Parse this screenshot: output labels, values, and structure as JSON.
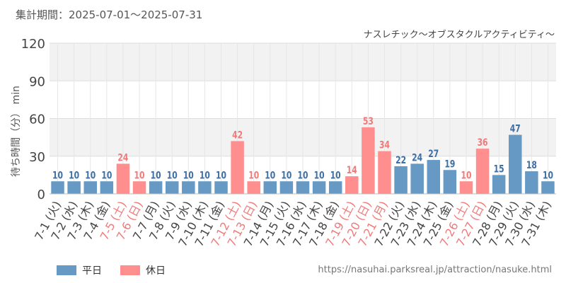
{
  "header": {
    "period": "集計期間：2025-07-01～2025-07-31",
    "attraction": "ナスレチック～オブスタクルアクティビティ～"
  },
  "footer": {
    "url": "https://nasuhai.parksreal.jp/attraction/nasuke.html"
  },
  "colors": {
    "weekday": "#6699c4",
    "holiday": "#ff8e8e",
    "weekday_text": "#3d6fa5",
    "holiday_text": "#f07a7a",
    "tick_text": "#444444"
  },
  "chart_data": {
    "type": "bar",
    "ylabel": "待ち時間（分） min",
    "ylim": [
      0,
      120
    ],
    "yticks": [
      0,
      30,
      60,
      90,
      120
    ],
    "grid": true,
    "legend_position": "bottom-left",
    "categories": [
      "7-1 (火)",
      "7-2 (水)",
      "7-3 (木)",
      "7-4 (金)",
      "7-5 (土)",
      "7-6 (日)",
      "7-7 (月)",
      "7-8 (火)",
      "7-9 (水)",
      "7-10 (木)",
      "7-11 (金)",
      "7-12 (土)",
      "7-13 (日)",
      "7-14 (月)",
      "7-15 (火)",
      "7-16 (水)",
      "7-17 (木)",
      "7-18 (金)",
      "7-19 (土)",
      "7-20 (日)",
      "7-21 (月)",
      "7-22 (火)",
      "7-23 (水)",
      "7-24 (木)",
      "7-25 (金)",
      "7-26 (土)",
      "7-27 (日)",
      "7-28 (月)",
      "7-29 (火)",
      "7-30 (水)",
      "7-31 (木)"
    ],
    "values": [
      10,
      10,
      10,
      10,
      24,
      10,
      10,
      10,
      10,
      10,
      10,
      42,
      10,
      10,
      10,
      10,
      10,
      10,
      14,
      53,
      34,
      22,
      24,
      27,
      19,
      10,
      36,
      15,
      47,
      18,
      10
    ],
    "holiday": [
      false,
      false,
      false,
      false,
      true,
      true,
      false,
      false,
      false,
      false,
      false,
      true,
      true,
      false,
      false,
      false,
      false,
      false,
      true,
      true,
      true,
      false,
      false,
      false,
      false,
      true,
      true,
      false,
      false,
      false,
      false
    ],
    "series": [
      {
        "name": "平日"
      },
      {
        "name": "休日"
      }
    ]
  }
}
